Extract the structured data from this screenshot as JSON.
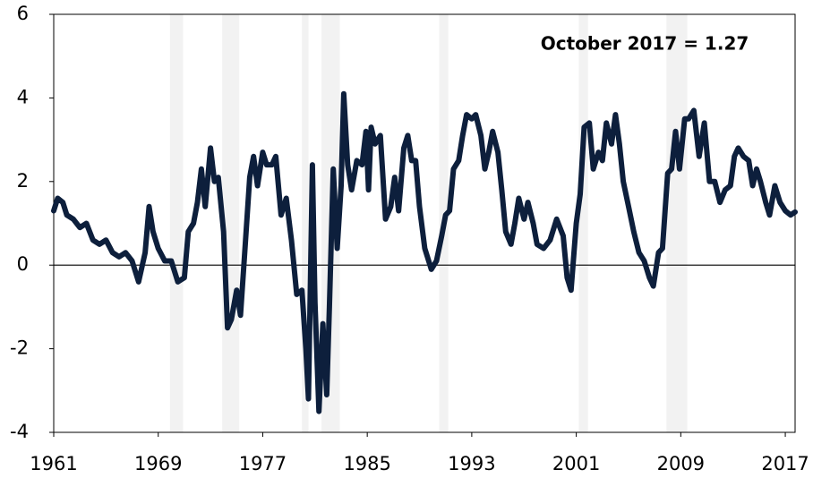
{
  "chart_data": {
    "type": "line",
    "annotation": "October 2017  = 1.27",
    "xlim": [
      1961,
      2017.75
    ],
    "ylim": [
      -4,
      6
    ],
    "xticks": [
      1961,
      1969,
      1977,
      1985,
      1993,
      2001,
      2009,
      2017
    ],
    "yticks": [
      -4,
      -2,
      0,
      2,
      4,
      6
    ],
    "recessions": [
      [
        1969.9,
        1970.9
      ],
      [
        1973.9,
        1975.2
      ],
      [
        1980.0,
        1980.5
      ],
      [
        1981.5,
        1982.9
      ],
      [
        1990.5,
        1991.2
      ],
      [
        2001.2,
        2001.9
      ],
      [
        2007.9,
        2009.5
      ]
    ],
    "series": [
      {
        "color": "#0d1f3c",
        "x": [
          1961.0,
          1961.3,
          1961.7,
          1962.0,
          1962.5,
          1963.0,
          1963.5,
          1964.0,
          1964.5,
          1965.0,
          1965.5,
          1966.0,
          1966.5,
          1967.0,
          1967.5,
          1968.0,
          1968.3,
          1968.6,
          1969.0,
          1969.5,
          1970.0,
          1970.5,
          1971.0,
          1971.3,
          1971.7,
          1972.0,
          1972.3,
          1972.6,
          1973.0,
          1973.3,
          1973.6,
          1974.0,
          1974.3,
          1974.6,
          1975.0,
          1975.3,
          1975.6,
          1976.0,
          1976.3,
          1976.6,
          1977.0,
          1977.3,
          1977.7,
          1978.0,
          1978.4,
          1978.8,
          1979.2,
          1979.6,
          1980.0,
          1980.3,
          1980.5,
          1980.8,
          1981.0,
          1981.3,
          1981.6,
          1981.9,
          1982.1,
          1982.4,
          1982.7,
          1983.0,
          1983.2,
          1983.5,
          1983.8,
          1984.2,
          1984.6,
          1984.9,
          1985.1,
          1985.3,
          1985.6,
          1986.0,
          1986.4,
          1986.8,
          1987.1,
          1987.4,
          1987.8,
          1988.1,
          1988.4,
          1988.7,
          1989.0,
          1989.4,
          1989.9,
          1990.3,
          1990.7,
          1991.0,
          1991.3,
          1991.6,
          1992.0,
          1992.3,
          1992.6,
          1993.0,
          1993.3,
          1993.7,
          1994.0,
          1994.3,
          1994.6,
          1995.0,
          1995.3,
          1995.6,
          1996.0,
          1996.3,
          1996.6,
          1997.0,
          1997.3,
          1997.7,
          1998.0,
          1998.5,
          1999.0,
          1999.5,
          2000.0,
          2000.3,
          2000.6,
          2001.0,
          2001.3,
          2001.6,
          2002.0,
          2002.3,
          2002.7,
          2003.0,
          2003.3,
          2003.7,
          2004.0,
          2004.3,
          2004.6,
          2005.0,
          2005.4,
          2005.8,
          2006.2,
          2006.6,
          2006.9,
          2007.3,
          2007.6,
          2008.0,
          2008.3,
          2008.6,
          2008.9,
          2009.3,
          2009.6,
          2010.0,
          2010.4,
          2010.8,
          2011.2,
          2011.6,
          2012.0,
          2012.4,
          2012.8,
          2013.1,
          2013.4,
          2013.8,
          2014.2,
          2014.5,
          2014.8,
          2015.1,
          2015.5,
          2015.8,
          2016.2,
          2016.6,
          2017.0,
          2017.4,
          2017.75
        ],
        "values": [
          1.3,
          1.6,
          1.5,
          1.2,
          1.1,
          0.9,
          1.0,
          0.6,
          0.5,
          0.6,
          0.3,
          0.2,
          0.3,
          0.1,
          -0.4,
          0.3,
          1.4,
          0.8,
          0.4,
          0.1,
          0.1,
          -0.4,
          -0.3,
          0.8,
          1.0,
          1.5,
          2.3,
          1.4,
          2.8,
          2.0,
          2.1,
          0.8,
          -1.5,
          -1.3,
          -0.6,
          -1.2,
          0.2,
          2.1,
          2.6,
          1.9,
          2.7,
          2.4,
          2.4,
          2.6,
          1.2,
          1.6,
          0.6,
          -0.7,
          -0.6,
          -2.0,
          -3.2,
          2.4,
          -0.9,
          -3.5,
          -1.4,
          -3.1,
          -1.0,
          2.3,
          0.4,
          1.9,
          4.1,
          2.4,
          1.8,
          2.5,
          2.4,
          3.2,
          1.8,
          3.3,
          2.9,
          3.1,
          1.1,
          1.4,
          2.1,
          1.3,
          2.8,
          3.1,
          2.5,
          2.5,
          1.4,
          0.4,
          -0.1,
          0.1,
          0.7,
          1.2,
          1.3,
          2.3,
          2.5,
          3.1,
          3.6,
          3.5,
          3.6,
          3.1,
          2.3,
          2.7,
          3.2,
          2.7,
          1.8,
          0.8,
          0.5,
          1.0,
          1.6,
          1.1,
          1.5,
          1.0,
          0.5,
          0.4,
          0.6,
          1.1,
          0.7,
          -0.3,
          -0.6,
          1.0,
          1.7,
          3.3,
          3.4,
          2.3,
          2.7,
          2.5,
          3.4,
          2.9,
          3.6,
          2.9,
          2.0,
          1.4,
          0.8,
          0.3,
          0.1,
          -0.3,
          -0.5,
          0.3,
          0.4,
          2.2,
          2.3,
          3.2,
          2.3,
          3.5,
          3.5,
          3.7,
          2.6,
          3.4,
          2.0,
          2.0,
          1.5,
          1.8,
          1.9,
          2.6,
          2.8,
          2.6,
          2.5,
          1.9,
          2.3,
          2.0,
          1.5,
          1.2,
          1.9,
          1.5,
          1.3,
          1.2,
          1.27
        ]
      }
    ]
  }
}
